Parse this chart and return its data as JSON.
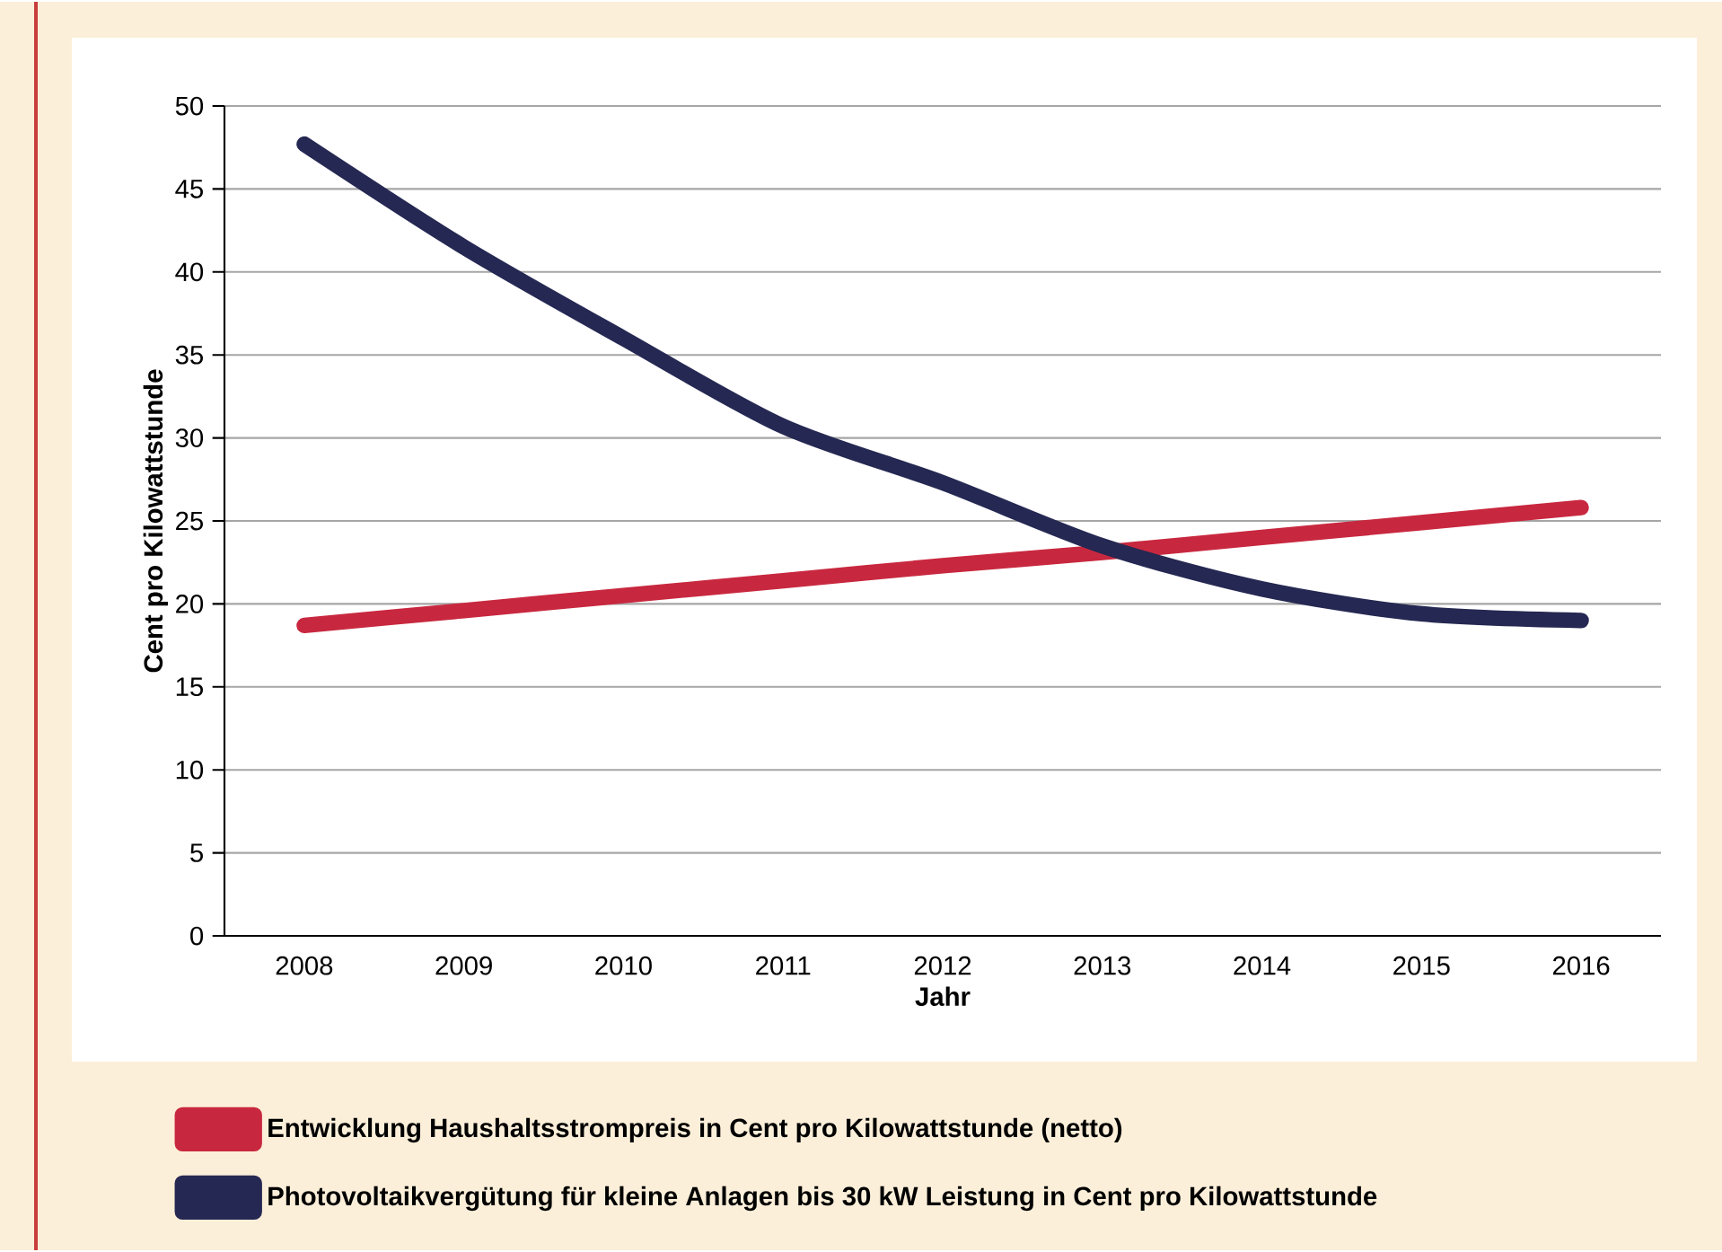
{
  "chart_data": {
    "type": "line",
    "xlabel": "Jahr",
    "ylabel": "Cent pro Kilowattstunde",
    "categories": [
      "2008",
      "2009",
      "2010",
      "2011",
      "2012",
      "2013",
      "2014",
      "2015",
      "2016"
    ],
    "series": [
      {
        "name": "Entwicklung Haushaltsstrompreis in Cent pro Kilowattstunde (netto)",
        "color": "#c8283f",
        "values": [
          18.7,
          19.6,
          20.5,
          21.4,
          22.3,
          23.1,
          24.0,
          24.9,
          25.8
        ]
      },
      {
        "name": "Photovoltaikvergütung für kleine Anlagen bis 30 kW Leistung in Cent pro Kilowattstunde",
        "color": "#252852",
        "values": [
          47.7,
          41.5,
          36.0,
          30.7,
          27.3,
          23.5,
          20.9,
          19.4,
          19.0
        ]
      }
    ],
    "ylim": [
      0,
      50
    ],
    "yticks": [
      0,
      5,
      10,
      15,
      20,
      25,
      30,
      35,
      40,
      45,
      50
    ],
    "grid": "y",
    "legend": "bottom",
    "marker": "none",
    "line_style": "solid"
  }
}
